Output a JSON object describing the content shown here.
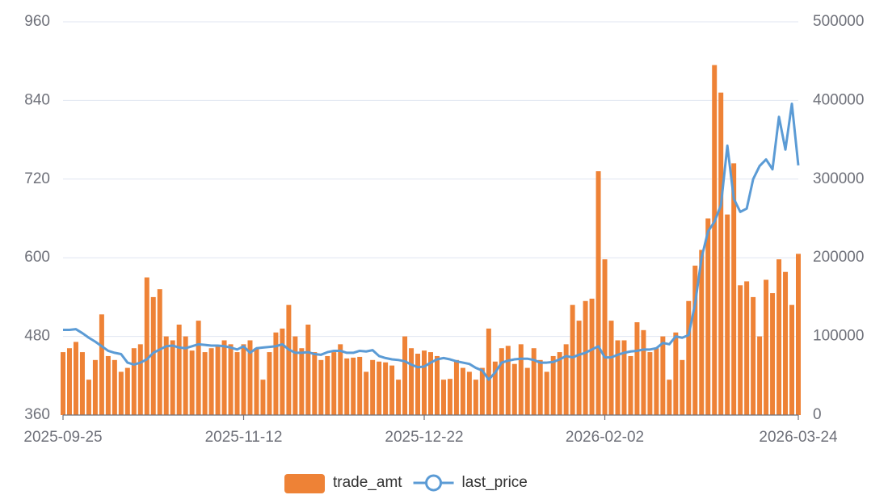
{
  "chart_data": {
    "type": "bar-line",
    "categories": [
      "2025-09-25",
      null,
      null,
      null,
      null,
      null,
      null,
      null,
      null,
      null,
      null,
      null,
      null,
      null,
      null,
      null,
      null,
      null,
      null,
      null,
      null,
      null,
      null,
      null,
      null,
      null,
      null,
      null,
      "2025-11-12",
      null,
      null,
      null,
      null,
      null,
      null,
      null,
      null,
      null,
      null,
      null,
      null,
      null,
      null,
      null,
      null,
      null,
      null,
      null,
      null,
      null,
      null,
      null,
      null,
      null,
      null,
      null,
      "2025-12-22",
      null,
      null,
      null,
      null,
      null,
      null,
      null,
      null,
      null,
      null,
      null,
      null,
      null,
      null,
      null,
      null,
      null,
      null,
      null,
      null,
      null,
      null,
      null,
      null,
      null,
      null,
      null,
      "2026-02-02",
      null,
      null,
      null,
      null,
      null,
      null,
      null,
      null,
      null,
      null,
      null,
      null,
      null,
      null,
      null,
      null,
      null,
      null,
      null,
      null,
      null,
      null,
      null,
      null,
      null,
      null,
      null,
      null,
      null,
      "2026-03-24"
    ],
    "series": [
      {
        "name": "trade_amt",
        "type": "bar",
        "axis": "y2",
        "color": "#ee8236",
        "values": [
          80000,
          85000,
          93000,
          80000,
          45000,
          70000,
          128000,
          75000,
          70000,
          55000,
          60000,
          85000,
          90000,
          175000,
          150000,
          160000,
          100000,
          95000,
          115000,
          100000,
          82000,
          120000,
          80000,
          85000,
          88000,
          95000,
          90000,
          80000,
          90000,
          95000,
          85000,
          45000,
          80000,
          105000,
          110000,
          140000,
          100000,
          85000,
          115000,
          80000,
          70000,
          75000,
          80000,
          90000,
          72000,
          73000,
          74000,
          55000,
          70000,
          68000,
          67000,
          63000,
          45000,
          100000,
          85000,
          78000,
          82000,
          80000,
          75000,
          45000,
          46000,
          70000,
          60000,
          55000,
          45000,
          60000,
          110000,
          68000,
          85000,
          88000,
          65000,
          90000,
          60000,
          85000,
          70000,
          55000,
          75000,
          80000,
          90000,
          140000,
          120000,
          145000,
          148000,
          310000,
          198000,
          120000,
          95000,
          95000,
          75000,
          118000,
          108000,
          80000,
          85000,
          100000,
          45000,
          105000,
          70000,
          145000,
          190000,
          210000,
          250000,
          445000,
          410000,
          255000,
          320000,
          165000,
          170000,
          150000,
          100000,
          172000,
          155000,
          198000,
          182000,
          140000,
          205000
        ]
      },
      {
        "name": "last_price",
        "type": "line",
        "color": "#5b9bd5",
        "values": [
          490,
          490,
          491,
          485,
          478,
          472,
          465,
          458,
          455,
          453,
          440,
          437,
          440,
          445,
          455,
          460,
          465,
          466,
          463,
          462,
          465,
          468,
          467,
          466,
          466,
          465,
          463,
          460,
          465,
          455,
          462,
          463,
          464,
          465,
          468,
          460,
          455,
          455,
          456,
          453,
          452,
          456,
          458,
          458,
          455,
          455,
          458,
          457,
          459,
          450,
          447,
          445,
          444,
          442,
          437,
          433,
          434,
          440,
          445,
          447,
          445,
          442,
          440,
          438,
          432,
          428,
          414,
          425,
          440,
          443,
          445,
          446,
          446,
          444,
          440,
          440,
          441,
          445,
          450,
          448,
          452,
          455,
          460,
          465,
          448,
          448,
          452,
          455,
          457,
          458,
          460,
          460,
          462,
          470,
          468,
          480,
          478,
          482,
          530,
          600,
          640,
          655,
          680,
          771,
          690,
          670,
          675,
          720,
          740,
          750,
          735,
          815,
          765,
          835,
          741
        ]
      }
    ],
    "ylim": [
      360,
      960
    ],
    "yticks": [
      360,
      480,
      600,
      720,
      840,
      960
    ],
    "y2lim": [
      0,
      500000
    ],
    "y2ticks": [
      0,
      100000,
      200000,
      300000,
      400000,
      500000
    ],
    "grid": true,
    "legend": "bottom"
  }
}
